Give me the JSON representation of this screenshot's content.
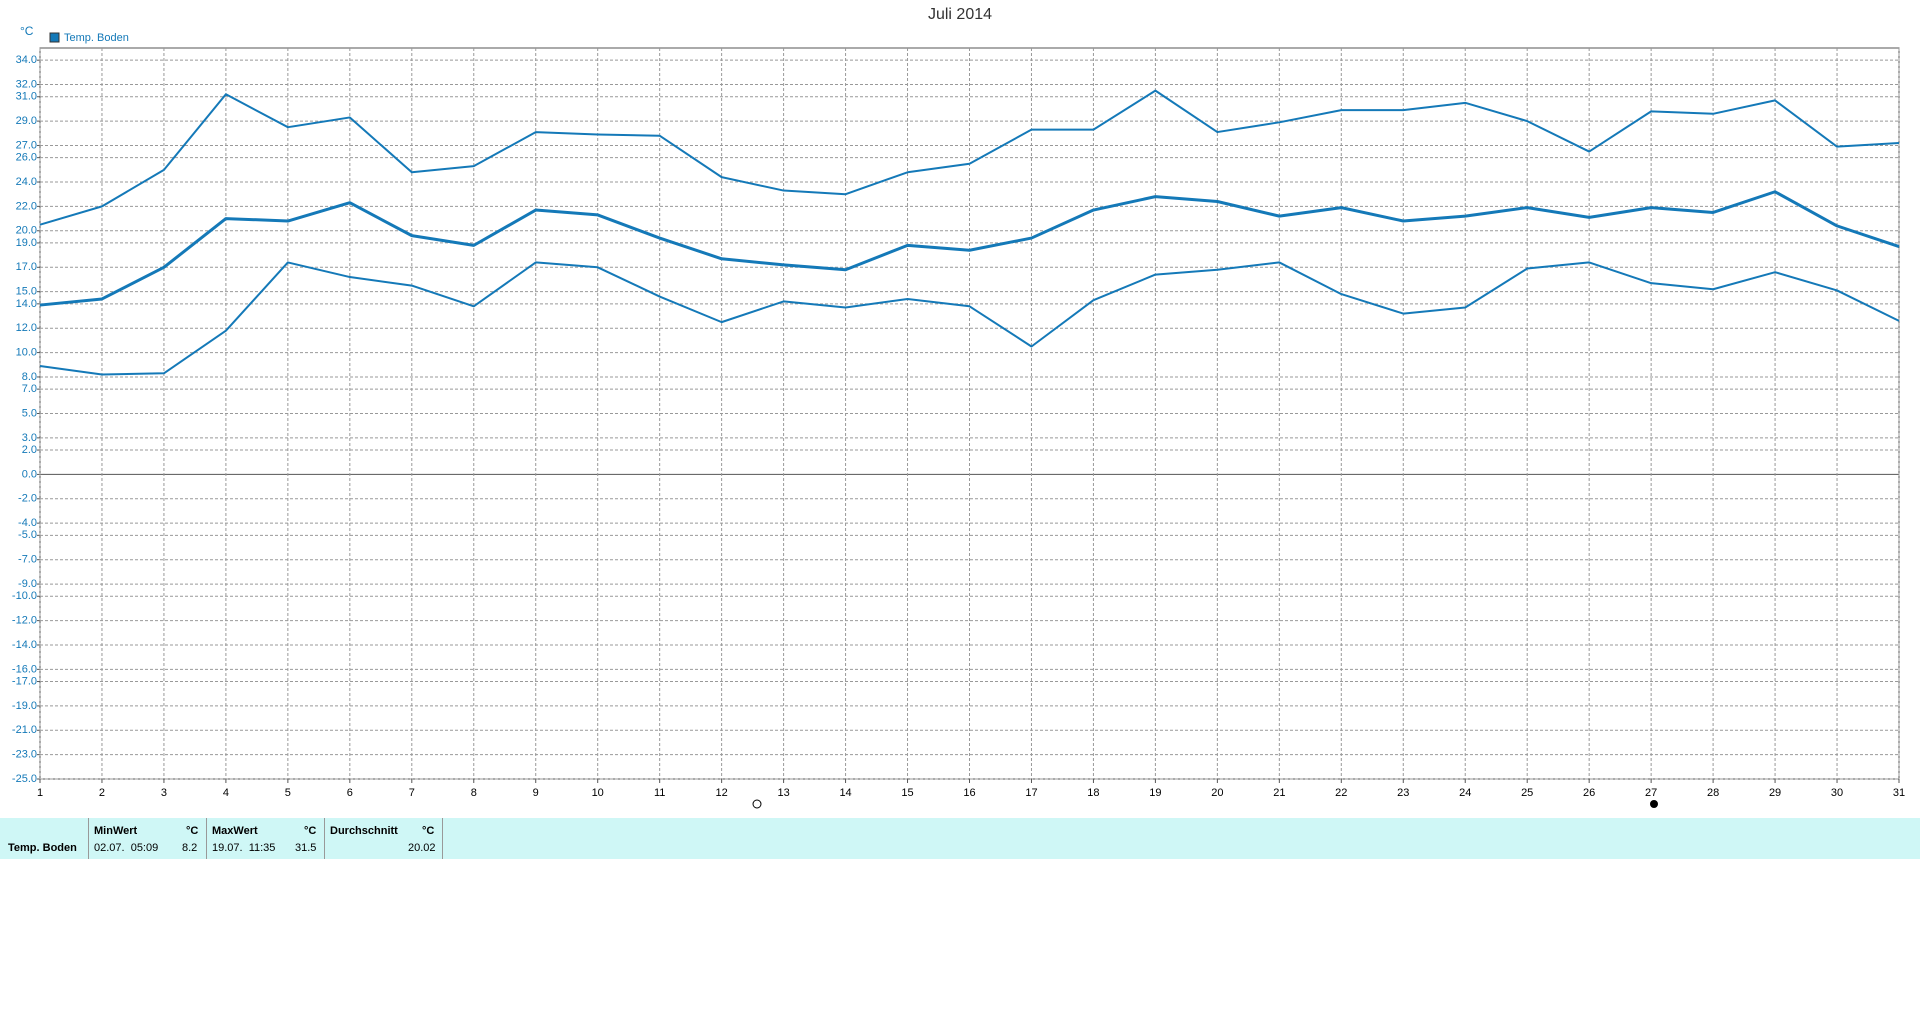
{
  "chart_data": {
    "type": "line",
    "title": "Juli 2014",
    "y_unit": "°C",
    "legend": "Temp. Boden",
    "x": [
      1,
      2,
      3,
      4,
      5,
      6,
      7,
      8,
      9,
      10,
      11,
      12,
      13,
      14,
      15,
      16,
      17,
      18,
      19,
      20,
      21,
      22,
      23,
      24,
      25,
      26,
      27,
      28,
      29,
      30,
      31
    ],
    "series": [
      {
        "color": "#1479b8",
        "width": 2,
        "values": [
          20.5,
          22.0,
          25.0,
          31.2,
          28.5,
          29.3,
          24.8,
          25.3,
          28.1,
          27.9,
          27.8,
          24.4,
          23.3,
          23.0,
          24.8,
          25.5,
          28.3,
          28.3,
          31.5,
          28.1,
          28.9,
          29.9,
          29.9,
          30.5,
          29.0,
          26.5,
          29.8,
          29.6,
          30.7,
          26.9,
          27.2
        ]
      },
      {
        "color": "#1479b8",
        "width": 3,
        "values": [
          13.9,
          14.4,
          17.0,
          21.0,
          20.8,
          22.3,
          19.6,
          18.8,
          21.7,
          21.3,
          19.4,
          17.7,
          17.2,
          16.8,
          18.8,
          18.4,
          19.4,
          21.7,
          22.8,
          22.4,
          21.2,
          21.9,
          20.8,
          21.2,
          21.9,
          21.1,
          21.9,
          21.5,
          23.2,
          20.4,
          18.7
        ]
      },
      {
        "color": "#1479b8",
        "width": 2,
        "values": [
          8.9,
          8.2,
          8.3,
          11.8,
          17.4,
          16.2,
          15.5,
          13.8,
          17.4,
          17.0,
          14.6,
          12.5,
          14.2,
          13.7,
          14.4,
          13.8,
          10.5,
          14.3,
          16.4,
          16.8,
          17.4,
          14.8,
          13.2,
          13.7,
          16.9,
          17.4,
          15.7,
          15.2,
          16.6,
          15.1,
          12.6
        ]
      }
    ],
    "xlim": [
      1,
      31
    ],
    "xticks": [
      1,
      2,
      3,
      4,
      5,
      6,
      7,
      8,
      9,
      10,
      11,
      12,
      13,
      14,
      15,
      16,
      17,
      18,
      19,
      20,
      21,
      22,
      23,
      24,
      25,
      26,
      27,
      28,
      29,
      30,
      31
    ],
    "ylim": [
      -25,
      35
    ],
    "yticks": [
      {
        "value": 34,
        "label": "34.0"
      },
      {
        "value": 32,
        "label": "32.0"
      },
      {
        "value": 31,
        "label": "31.0"
      },
      {
        "value": 29,
        "label": "29.0"
      },
      {
        "value": 27,
        "label": "27.0"
      },
      {
        "value": 26,
        "label": "26.0"
      },
      {
        "value": 24,
        "label": "24.0"
      },
      {
        "value": 22,
        "label": "22.0"
      },
      {
        "value": 20,
        "label": "20.0"
      },
      {
        "value": 19,
        "label": "19.0"
      },
      {
        "value": 17,
        "label": "17.0"
      },
      {
        "value": 15,
        "label": "15.0"
      },
      {
        "value": 14,
        "label": "14.0"
      },
      {
        "value": 12,
        "label": "12.0"
      },
      {
        "value": 10,
        "label": "10.0"
      },
      {
        "value": 8,
        "label": "8.0"
      },
      {
        "value": 7,
        "label": "7.0"
      },
      {
        "value": 5,
        "label": "5.0"
      },
      {
        "value": 3,
        "label": "3.0"
      },
      {
        "value": 2,
        "label": "2.0"
      },
      {
        "value": 0,
        "label": "0.0"
      },
      {
        "value": -2,
        "label": "-2.0"
      },
      {
        "value": -4,
        "label": "-4.0"
      },
      {
        "value": -5,
        "label": "-5.0"
      },
      {
        "value": -7,
        "label": "-7.0"
      },
      {
        "value": -9,
        "label": "-9.0"
      },
      {
        "value": -10,
        "label": "-10.0"
      },
      {
        "value": -12,
        "label": "-12.0"
      },
      {
        "value": -14,
        "label": "-14.0"
      },
      {
        "value": -16,
        "label": "-16.0"
      },
      {
        "value": -17,
        "label": "-17.0"
      },
      {
        "value": -19,
        "label": "-19.0"
      },
      {
        "value": -21,
        "label": "-21.0"
      },
      {
        "value": -23,
        "label": "-23.0"
      },
      {
        "value": -25,
        "label": "-25.0"
      }
    ],
    "grid": true
  },
  "stats_table": {
    "header": [
      "MinWert",
      "°C",
      "MaxWert",
      "°C",
      "Durchschnitt",
      "°C"
    ],
    "row": [
      "Temp. Boden",
      "02.07.  05:09",
      8.2,
      "19.07.  11:35",
      31.5,
      20.02
    ]
  }
}
